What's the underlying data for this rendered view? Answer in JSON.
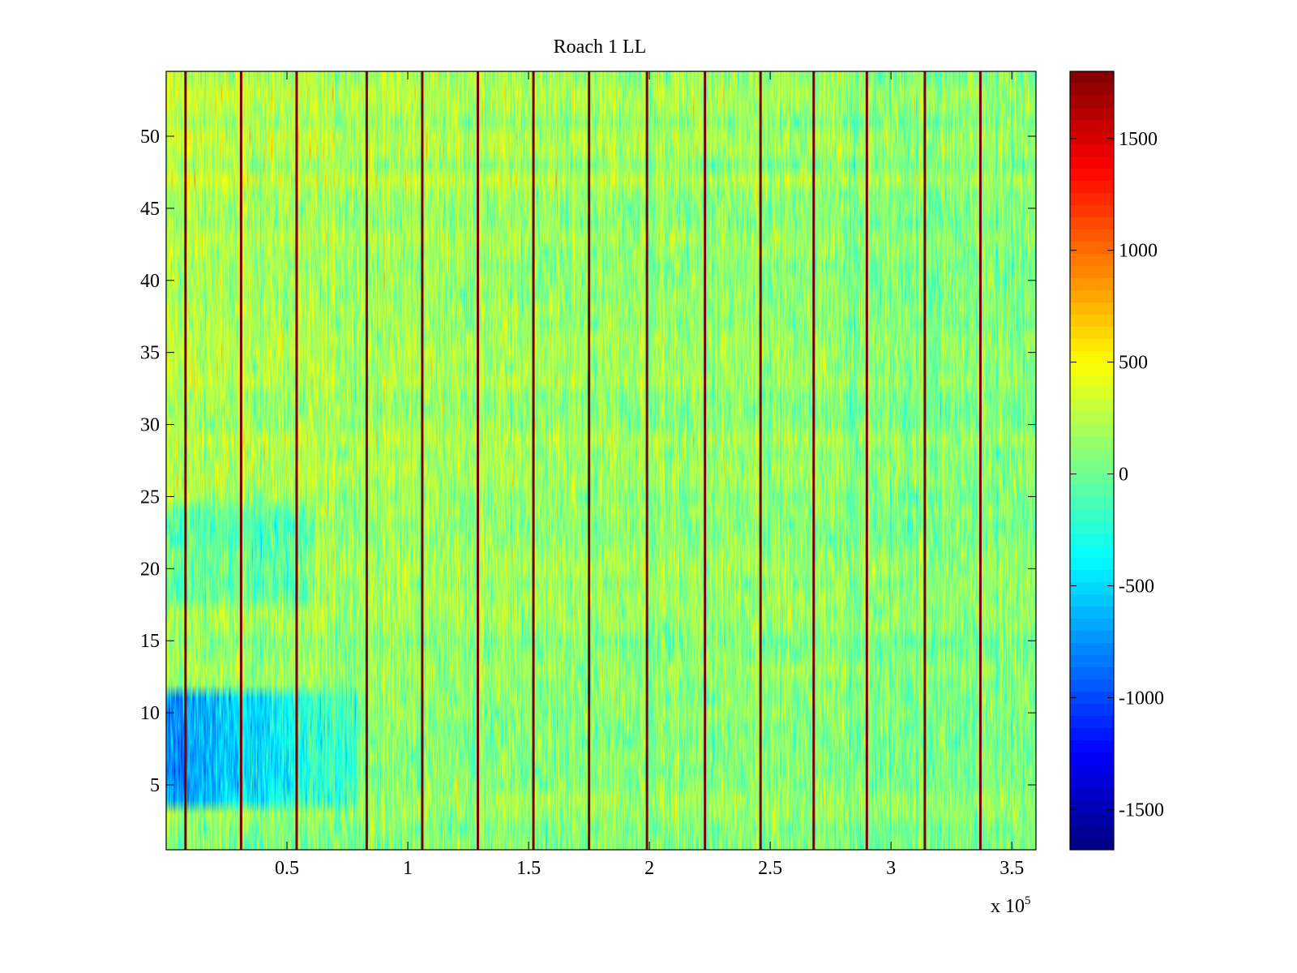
{
  "chart_data": {
    "type": "heatmap",
    "title": "Roach 1 LL",
    "xlabel": "",
    "ylabel": "",
    "xlim": [
      0,
      360000
    ],
    "ylim": [
      0.5,
      54.5
    ],
    "x_exponent_label": {
      "base": "x 10",
      "exponent": "5"
    },
    "x_ticks": [
      {
        "value": 50000,
        "label": "0.5"
      },
      {
        "value": 100000,
        "label": "1"
      },
      {
        "value": 150000,
        "label": "1.5"
      },
      {
        "value": 200000,
        "label": "2"
      },
      {
        "value": 250000,
        "label": "2.5"
      },
      {
        "value": 300000,
        "label": "3"
      },
      {
        "value": 350000,
        "label": "3.5"
      }
    ],
    "y_ticks": [
      {
        "value": 5,
        "label": "5"
      },
      {
        "value": 10,
        "label": "10"
      },
      {
        "value": 15,
        "label": "15"
      },
      {
        "value": 20,
        "label": "20"
      },
      {
        "value": 25,
        "label": "25"
      },
      {
        "value": 30,
        "label": "30"
      },
      {
        "value": 35,
        "label": "35"
      },
      {
        "value": 40,
        "label": "40"
      },
      {
        "value": 45,
        "label": "45"
      },
      {
        "value": 50,
        "label": "50"
      }
    ],
    "rows": 54,
    "colorbar": {
      "colormap": "jet",
      "range": [
        -1680,
        1800
      ],
      "ticks": [
        {
          "value": -1500,
          "label": "-1500"
        },
        {
          "value": -1000,
          "label": "-1000"
        },
        {
          "value": -500,
          "label": "-500"
        },
        {
          "value": 0,
          "label": "0"
        },
        {
          "value": 500,
          "label": "500"
        },
        {
          "value": 1000,
          "label": "1000"
        },
        {
          "value": 1500,
          "label": "1500"
        }
      ]
    },
    "vertical_stripes_x": [
      8000,
      31000,
      54000,
      83000,
      106000,
      129000,
      152000,
      175000,
      199000,
      223000,
      246000,
      268000,
      290000,
      314000,
      337000
    ],
    "grid": false
  }
}
